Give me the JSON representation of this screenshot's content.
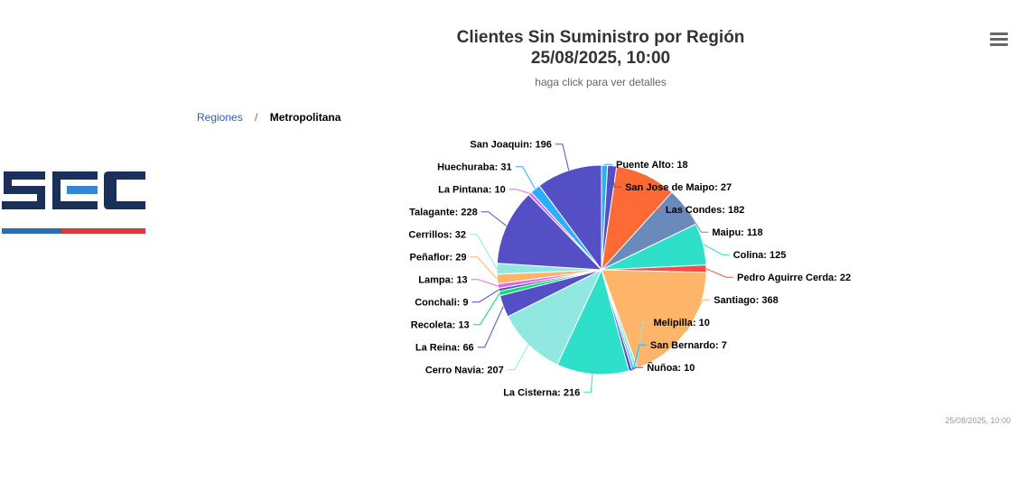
{
  "chart_data": {
    "type": "pie",
    "title": "Clientes Sin Suministro por Región",
    "title_date": "25/08/2025, 10:00",
    "subtitle": "haga click para ver detalles",
    "slices": [
      {
        "name": "Puente Alto",
        "value": 18,
        "color": "#2caffe"
      },
      {
        "name": "San Jose de Maipo",
        "value": 27,
        "color": "#544fc5"
      },
      {
        "name": "Las Condes",
        "value": 182,
        "color": "#fe6a35"
      },
      {
        "name": "Maipu",
        "value": 118,
        "color": "#6b8abc"
      },
      {
        "name": "Colina",
        "value": 125,
        "color": "#2ee0ca"
      },
      {
        "name": "Pedro Aguirre Cerda",
        "value": 22,
        "color": "#fa4b42"
      },
      {
        "name": "Santiago",
        "value": 368,
        "color": "#feb56a"
      },
      {
        "name": "Melipilla",
        "value": 10,
        "color": "#91e8e1"
      },
      {
        "name": "San Bernardo",
        "value": 7,
        "color": "#2caffe"
      },
      {
        "name": "Ñuñoa",
        "value": 10,
        "color": "#544fc5"
      },
      {
        "name": "La Cisterna",
        "value": 216,
        "color": "#2ee0ca"
      },
      {
        "name": "Cerro Navia",
        "value": 207,
        "color": "#91e8e1"
      },
      {
        "name": "La Reina",
        "value": 66,
        "color": "#544fc5"
      },
      {
        "name": "Recoleta",
        "value": 13,
        "color": "#00e272"
      },
      {
        "name": "Conchali",
        "value": 9,
        "color": "#544fc5"
      },
      {
        "name": "Lampa",
        "value": 13,
        "color": "#d568fb"
      },
      {
        "name": "Peñaflor",
        "value": 29,
        "color": "#feb56a"
      },
      {
        "name": "Cerrillos",
        "value": 32,
        "color": "#91e8e1"
      },
      {
        "name": "Talagante",
        "value": 228,
        "color": "#544fc5"
      },
      {
        "name": "La Pintana",
        "value": 10,
        "color": "#d568fb"
      },
      {
        "name": "Huechuraba",
        "value": 31,
        "color": "#2caffe"
      },
      {
        "name": "San Joaquin",
        "value": 196,
        "color": "#544fc5"
      }
    ]
  },
  "breadcrumb": {
    "parent": "Regiones",
    "separator": "/",
    "current": "Metropolitana"
  },
  "logo": {
    "text": "SEC",
    "primary_color": "#1b2f5b",
    "accent_color": "#2f87d8",
    "stripe_colors": [
      "#2a6db5",
      "#d93838"
    ]
  },
  "menu": {
    "icon": "hamburger-menu-icon"
  },
  "credits": {
    "timestamp": "25/08/2025, 10:00"
  }
}
